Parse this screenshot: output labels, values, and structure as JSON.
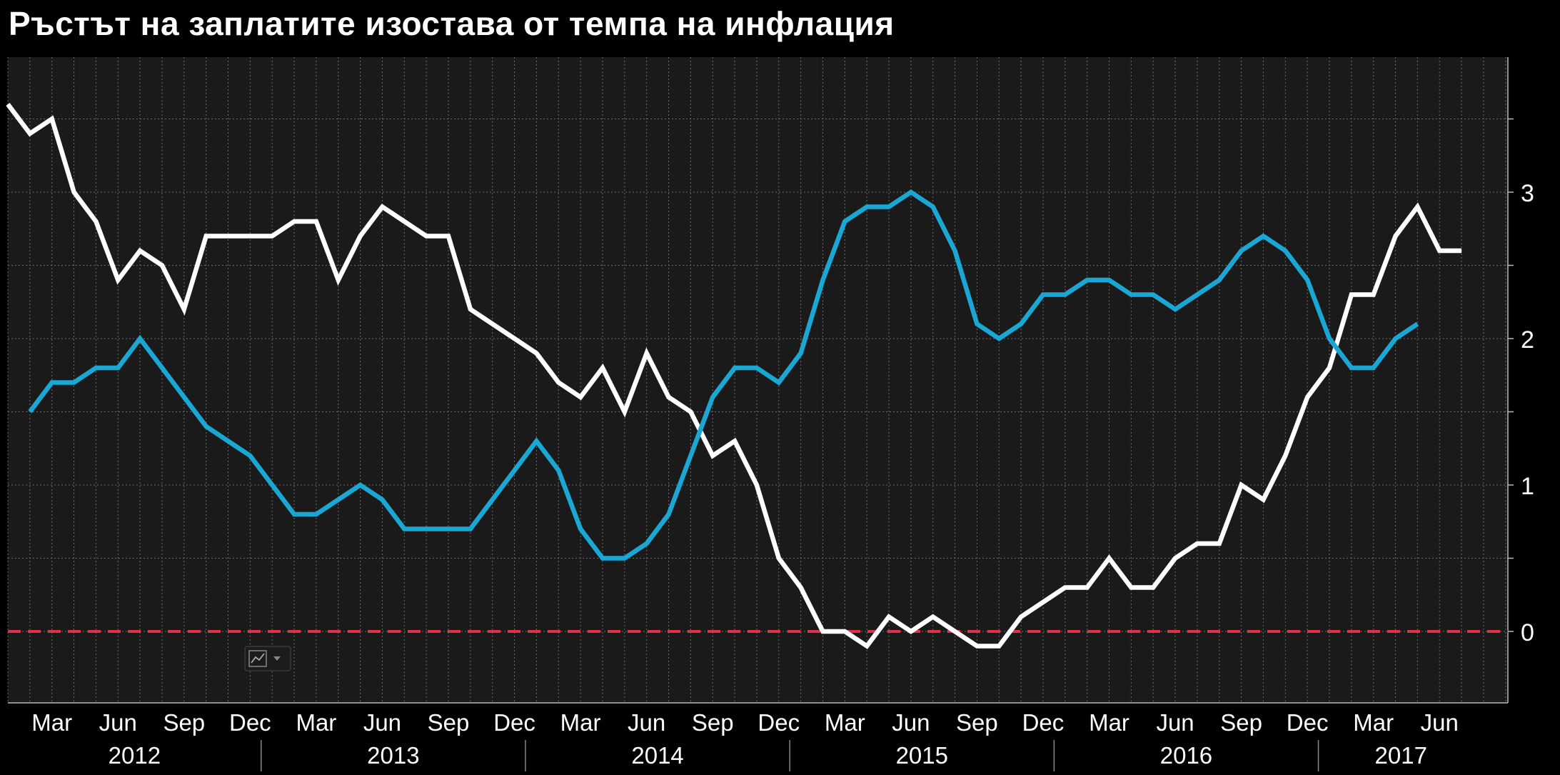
{
  "title": "Ръстът на заплатите изостава от темпа на инфлация",
  "colors": {
    "background": "#000000",
    "plot_background": "#1a1a1a",
    "grid": "#6a6a6a",
    "wages": "#ffffff",
    "inflation": "#1aa7d4",
    "zero_line": "#e0304a"
  },
  "chart_data": {
    "type": "line",
    "title": "Ръстът на заплатите изостава от темпа на инфлация",
    "xlabel": "",
    "ylabel": "",
    "ylim": [
      -0.45,
      3.95
    ],
    "yticks": [
      0,
      1,
      2,
      3
    ],
    "grid": true,
    "legend": "none",
    "axis_side": "right",
    "x_months": [
      "Mar",
      "Jun",
      "Sep",
      "Dec",
      "Mar",
      "Jun",
      "Sep",
      "Dec",
      "Mar",
      "Jun",
      "Sep",
      "Dec",
      "Mar",
      "Jun",
      "Sep",
      "Dec",
      "Mar",
      "Jun",
      "Sep",
      "Dec",
      "Mar",
      "Jun"
    ],
    "x_years": [
      "2012",
      "2013",
      "2014",
      "2015",
      "2016",
      "2017"
    ],
    "reference_line": {
      "y": 0,
      "style": "dashed"
    },
    "series": [
      {
        "color": "#ffffff",
        "start": "2012-01",
        "values": [
          3.6,
          3.4,
          3.5,
          3.0,
          2.8,
          2.4,
          2.6,
          2.5,
          2.2,
          2.7,
          2.7,
          2.7,
          2.7,
          2.8,
          2.8,
          2.4,
          2.7,
          2.9,
          2.8,
          2.7,
          2.7,
          2.2,
          2.1,
          2.0,
          1.9,
          1.7,
          1.6,
          1.8,
          1.5,
          1.9,
          1.6,
          1.5,
          1.2,
          1.3,
          1.0,
          0.5,
          0.3,
          0.0,
          0.0,
          -0.1,
          0.1,
          0.0,
          0.1,
          0.0,
          -0.1,
          -0.1,
          0.1,
          0.2,
          0.3,
          0.3,
          0.5,
          0.3,
          0.3,
          0.5,
          0.6,
          0.6,
          1.0,
          0.9,
          1.2,
          1.6,
          1.8,
          2.3,
          2.3,
          2.7,
          2.9,
          2.6,
          2.6
        ]
      },
      {
        "color": "#1aa7d4",
        "start": "2012-02",
        "values": [
          1.5,
          1.7,
          1.7,
          1.8,
          1.8,
          2.0,
          1.8,
          1.6,
          1.4,
          1.3,
          1.2,
          1.0,
          0.8,
          0.8,
          0.9,
          1.0,
          0.9,
          0.7,
          0.7,
          0.7,
          0.7,
          0.9,
          1.1,
          1.3,
          1.1,
          0.7,
          0.5,
          0.5,
          0.6,
          0.8,
          1.2,
          1.6,
          1.8,
          1.8,
          1.7,
          1.9,
          2.4,
          2.8,
          2.9,
          2.9,
          3.0,
          2.9,
          2.6,
          2.1,
          2.0,
          2.1,
          2.3,
          2.3,
          2.4,
          2.4,
          2.3,
          2.3,
          2.2,
          2.3,
          2.4,
          2.6,
          2.7,
          2.6,
          2.4,
          2.0,
          1.8,
          1.8,
          2.0,
          2.1
        ]
      }
    ]
  }
}
